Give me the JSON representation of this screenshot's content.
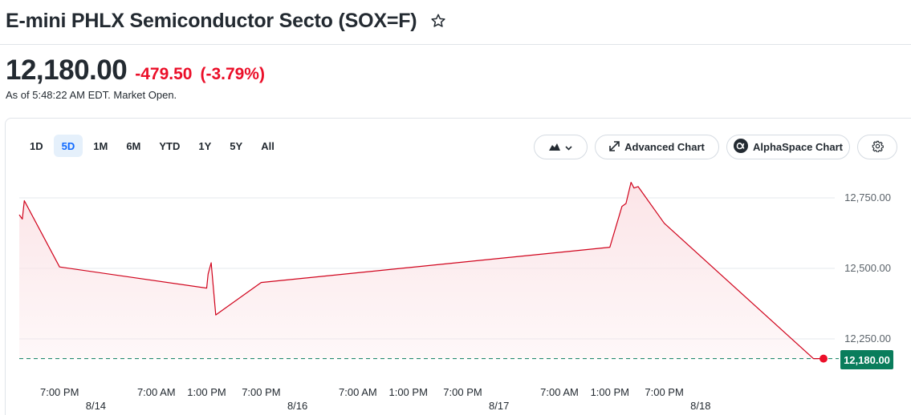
{
  "quote": {
    "title": "E-mini PHLX Semiconductor Secto (SOX=F)",
    "price": "12,180.00",
    "change": "-479.50",
    "change_pct": "(-3.79%)",
    "as_of": "As of 5:48:22 AM EDT. Market Open."
  },
  "toolbar": {
    "ranges": [
      "1D",
      "5D",
      "1M",
      "6M",
      "YTD",
      "1Y",
      "5Y",
      "All"
    ],
    "active_range": "5D",
    "advanced_chart": "Advanced Chart",
    "alphaspace_chart": "AlphaSpace Chart"
  },
  "colors": {
    "line": "#d0021b",
    "fill": "#fbe3e6",
    "last_price_tag": "#0a7d5c",
    "change": "#eb0f29",
    "active_tab_bg": "#e5f0fb",
    "active_tab_text": "#0f69ff"
  },
  "chart_data": {
    "type": "area",
    "last_value": 12180,
    "last_value_label": "12,180.00",
    "y_ticks": [
      {
        "value": 12750,
        "label": "12,750.00"
      },
      {
        "value": 12500,
        "label": "12,500.00"
      },
      {
        "value": 12250,
        "label": "12,250.00"
      }
    ],
    "x_ticks": [
      {
        "t": 1.12,
        "label": "7:00 PM"
      },
      {
        "t": 1.6,
        "label": "7:00 AM"
      },
      {
        "t": 1.85,
        "label": "1:00 PM"
      },
      {
        "t": 2.12,
        "label": "7:00 PM"
      },
      {
        "t": 2.6,
        "label": "7:00 AM"
      },
      {
        "t": 2.85,
        "label": "1:00 PM"
      },
      {
        "t": 3.12,
        "label": "7:00 PM"
      },
      {
        "t": 3.6,
        "label": "7:00 AM"
      },
      {
        "t": 3.85,
        "label": "1:00 PM"
      },
      {
        "t": 4.12,
        "label": "7:00 PM"
      }
    ],
    "date_ticks": [
      {
        "t": 1.3,
        "label": "8/14"
      },
      {
        "t": 2.3,
        "label": "8/16"
      },
      {
        "t": 3.3,
        "label": "8/17"
      },
      {
        "t": 4.3,
        "label": "8/18"
      }
    ],
    "points": [
      [
        0.92,
        12690
      ],
      [
        0.935,
        12675
      ],
      [
        0.945,
        12740
      ],
      [
        1.12,
        12505
      ],
      [
        1.85,
        12430
      ],
      [
        1.857,
        12480
      ],
      [
        1.872,
        12520
      ],
      [
        1.895,
        12335
      ],
      [
        2.12,
        12450
      ],
      [
        3.85,
        12575
      ],
      [
        3.91,
        12720
      ],
      [
        3.93,
        12730
      ],
      [
        3.955,
        12805
      ],
      [
        3.97,
        12785
      ],
      [
        3.99,
        12790
      ],
      [
        4.12,
        12660
      ],
      [
        4.86,
        12180
      ],
      [
        4.91,
        12180
      ]
    ]
  }
}
